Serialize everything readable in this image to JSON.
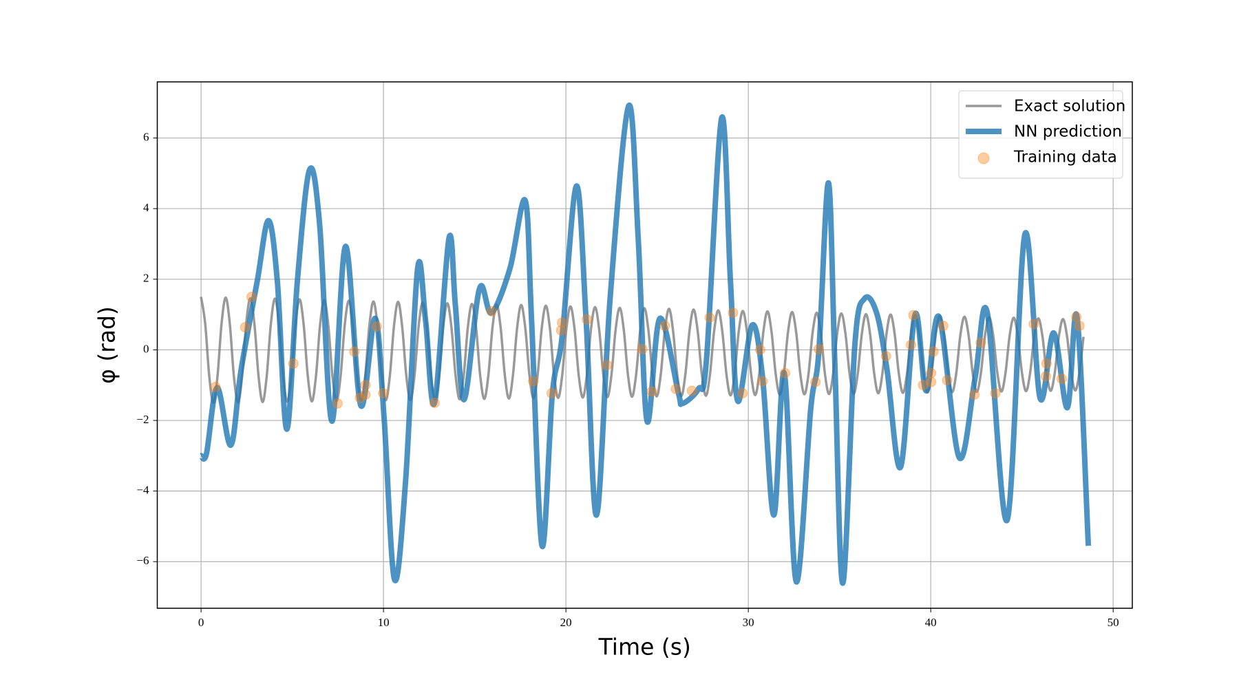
{
  "chart_data": {
    "type": "line",
    "xlabel": "Time (s)",
    "ylabel": "φ (rad)",
    "xlim": [
      -2.4,
      51.05
    ],
    "ylim": [
      -7.32,
      7.59
    ],
    "xticks": [
      0,
      10,
      20,
      30,
      40,
      50
    ],
    "yticks": [
      {
        "value": -6,
        "label": "−6"
      },
      {
        "value": -4,
        "label": "−4"
      },
      {
        "value": -2,
        "label": "−2"
      },
      0,
      2,
      4,
      6
    ],
    "grid": true,
    "legend": "upper right",
    "series": [
      {
        "name": "Exact solution",
        "type": "line",
        "color": "#808080",
        "x": [
          0,
          0.225,
          0.45,
          0.675,
          0.9,
          1.125,
          1.35,
          1.575,
          1.8,
          2.025,
          2.25,
          2.475,
          2.7,
          2.925,
          3.15,
          3.375,
          3.6,
          3.825,
          4.05,
          4.275,
          4.5,
          4.725,
          4.95,
          5.175,
          5.4,
          5.625,
          5.85,
          6.075,
          6.3,
          6.525,
          6.75,
          6.975,
          7.2,
          7.425,
          7.65,
          7.875,
          8.1,
          8.325,
          8.55,
          8.775,
          9,
          9.225,
          9.45,
          9.675,
          9.9,
          10.125,
          10.35,
          10.575,
          10.8,
          11.025,
          11.25,
          11.475,
          11.7,
          11.925,
          12.15,
          12.375,
          12.6,
          12.825,
          13.05,
          13.275,
          13.5,
          13.725,
          13.95,
          14.175,
          14.4,
          14.625,
          14.85,
          15.075,
          15.3,
          15.525,
          15.75,
          15.975,
          16.2,
          16.425,
          16.65,
          16.875,
          17.1,
          17.325,
          17.55,
          17.775,
          18,
          18.225,
          18.45,
          18.675,
          18.9,
          19.125,
          19.35,
          19.575,
          19.8,
          20.025,
          20.25,
          20.475,
          20.7,
          20.925,
          21.15,
          21.375,
          21.6,
          21.825,
          22.05,
          22.275,
          22.5,
          22.725,
          22.95,
          23.175,
          23.4,
          23.625,
          23.85,
          24.075,
          24.3,
          24.525,
          24.75,
          24.975,
          25.2,
          25.425,
          25.65,
          25.875,
          26.1,
          26.325,
          26.55,
          26.775,
          27,
          27.225,
          27.45,
          27.675,
          27.9,
          28.125,
          28.35,
          28.575,
          28.8,
          29.025,
          29.25,
          29.475,
          29.7,
          29.925,
          30.15,
          30.375,
          30.6,
          30.825,
          31.05,
          31.275,
          31.5,
          31.725,
          31.95,
          32.175,
          32.4,
          32.625,
          32.85,
          33.075,
          33.3,
          33.525,
          33.75,
          33.975,
          34.2,
          34.425,
          34.65,
          34.875,
          35.1,
          35.325,
          35.55,
          35.775,
          36,
          36.225,
          36.45,
          36.675,
          36.9,
          37.125,
          37.35,
          37.575,
          37.8,
          38.025,
          38.25,
          38.475,
          38.7,
          38.925,
          39.15,
          39.375,
          39.6,
          39.825,
          40.05,
          40.275,
          40.5,
          40.725,
          40.95,
          41.175,
          41.4,
          41.625,
          41.85,
          42.075,
          42.3,
          42.525,
          42.75,
          42.975,
          43.2,
          43.425,
          43.65,
          43.875,
          44.1,
          44.325,
          44.55,
          44.775,
          45,
          45.225,
          45.45,
          45.675,
          45.9,
          46.125,
          46.35,
          46.575,
          46.8,
          47.025,
          47.25,
          47.475,
          47.7,
          47.925,
          48.15,
          48.375
        ],
        "values": [
          1.5,
          0.75,
          -0.75,
          -1.5,
          -0.75,
          0.75,
          1.48,
          0.74,
          -0.75,
          -1.49,
          -0.75,
          0.74,
          1.46,
          0.73,
          -0.74,
          -1.48,
          -0.74,
          0.73,
          1.45,
          0.72,
          -0.74,
          -1.47,
          -0.74,
          0.72,
          1.43,
          0.71,
          -0.74,
          -1.46,
          -0.74,
          0.71,
          1.41,
          0.7,
          -0.74,
          -1.45,
          -0.74,
          0.7,
          1.39,
          0.68,
          -0.73,
          -1.44,
          -0.73,
          0.68,
          1.37,
          0.67,
          -0.73,
          -1.43,
          -0.73,
          0.67,
          1.36,
          0.66,
          -0.73,
          -1.42,
          -0.73,
          0.66,
          1.34,
          0.65,
          -0.72,
          -1.41,
          -0.72,
          0.65,
          1.32,
          0.64,
          -0.72,
          -1.4,
          -0.72,
          0.64,
          1.3,
          0.63,
          -0.72,
          -1.39,
          -0.72,
          0.63,
          1.28,
          0.62,
          -0.71,
          -1.38,
          -0.71,
          0.62,
          1.27,
          0.61,
          -0.71,
          -1.37,
          -0.71,
          0.61,
          1.25,
          0.6,
          -0.71,
          -1.36,
          -0.71,
          0.6,
          1.23,
          0.59,
          -0.71,
          -1.35,
          -0.71,
          0.59,
          1.21,
          0.57,
          -0.7,
          -1.34,
          -0.7,
          0.57,
          1.19,
          0.56,
          -0.7,
          -1.33,
          -0.7,
          0.56,
          1.18,
          0.55,
          -0.7,
          -1.32,
          -0.7,
          0.55,
          1.16,
          0.54,
          -0.69,
          -1.31,
          -0.69,
          0.54,
          1.14,
          0.53,
          -0.69,
          -1.3,
          -0.69,
          0.53,
          1.12,
          0.52,
          -0.69,
          -1.29,
          -0.69,
          0.52,
          1.1,
          0.51,
          -0.68,
          -1.28,
          -0.68,
          0.51,
          1.09,
          0.5,
          -0.68,
          -1.27,
          -0.68,
          0.5,
          1.07,
          0.49,
          -0.68,
          -1.26,
          -0.68,
          0.49,
          1.05,
          0.48,
          -0.68,
          -1.25,
          -0.68,
          0.48,
          1.03,
          0.46,
          -0.67,
          -1.24,
          -0.67,
          0.46,
          1.01,
          0.45,
          -0.67,
          -1.23,
          -0.67,
          0.45,
          1,
          0.44,
          -0.67,
          -1.22,
          -0.67,
          0.44,
          0.98,
          0.43,
          -0.66,
          -1.21,
          -0.66,
          0.43,
          0.96,
          0.42,
          -0.66,
          -1.2,
          -0.66,
          0.42,
          0.94,
          0.41,
          -0.66,
          -1.19,
          -0.66,
          0.41,
          0.92,
          0.4,
          -0.65,
          -1.18,
          -0.65,
          0.4,
          0.91,
          0.39,
          -0.65,
          -1.17,
          -0.65,
          0.39,
          0.89,
          0.38,
          -0.65,
          -1.16,
          -0.65,
          0.38,
          0.87,
          0.37,
          -0.65,
          -1.15,
          -0.65,
          0.37
        ]
      },
      {
        "name": "NN prediction",
        "type": "line",
        "color": "#1f77b4",
        "x": [
          0,
          0.3,
          0.88,
          1.63,
          2.2,
          3.08,
          3.69,
          4.18,
          4.7,
          5.28,
          5.94,
          6.5,
          7.17,
          7.92,
          8.75,
          9.54,
          10.03,
          10.6,
          11.21,
          11.87,
          12.31,
          12.8,
          13.59,
          13.94,
          14.42,
          15.26,
          15.92,
          16.93,
          17.77,
          18.12,
          18.69,
          19.26,
          19.79,
          20.58,
          21.11,
          21.68,
          22.43,
          23.44,
          23.97,
          24.45,
          25.15,
          26.17,
          26.38,
          27.26,
          27.7,
          28.54,
          29.02,
          29.42,
          30.21,
          30.78,
          31.4,
          31.97,
          32.63,
          33.42,
          33.86,
          34.39,
          34.74,
          35.18,
          35.84,
          36.37,
          37.03,
          37.6,
          38.35,
          39.14,
          39.75,
          40.46,
          41.56,
          42.44,
          43.1,
          44.19,
          45.16,
          45.99,
          46.74,
          47.49,
          48.02,
          48.64
        ],
        "values": [
          -3.0,
          -2.93,
          -1.07,
          -2.7,
          -0.55,
          1.95,
          3.66,
          1.95,
          -2.25,
          1.95,
          5.09,
          3.55,
          -2.02,
          2.93,
          -1.57,
          0.89,
          -1.9,
          -6.5,
          -3.73,
          2.3,
          0.82,
          -1.5,
          3.16,
          1.27,
          -1.41,
          1.73,
          1.05,
          2.3,
          4.23,
          0.82,
          -5.55,
          -1.23,
          0.36,
          4.64,
          0.82,
          -4.68,
          1.5,
          6.91,
          3.09,
          -2.02,
          0.89,
          -1.23,
          -1.52,
          -1.11,
          -0.32,
          6.57,
          1.95,
          -1.45,
          0.7,
          -0.77,
          -4.68,
          -0.66,
          -6.57,
          -1.68,
          -0.09,
          4.73,
          -0.32,
          -6.61,
          0.14,
          1.45,
          1.05,
          -0.55,
          -3.32,
          1.0,
          -1.16,
          0.93,
          -3.05,
          -0.77,
          1.05,
          -4.82,
          3.27,
          -1.36,
          0.48,
          -1.64,
          0.93,
          -5.55
        ]
      },
      {
        "name": "Training data",
        "type": "scatter",
        "color": "#ff7f0e",
        "x": [
          0.79,
          2.42,
          2.77,
          5.06,
          7.48,
          8.4,
          8.71,
          9.01,
          9.01,
          9.63,
          9.98,
          12.8,
          15.92,
          18.21,
          19.22,
          19.74,
          19.79,
          21.15,
          22.25,
          24.19,
          24.71,
          25.42,
          26.03,
          26.91,
          27.88,
          29.16,
          29.68,
          30.65,
          30.78,
          32.01,
          33.68,
          33.86,
          37.55,
          38.92,
          39.05,
          39.58,
          40.02,
          40.02,
          40.15,
          40.68,
          40.9,
          42.39,
          42.74,
          43.54,
          45.65,
          46.31,
          46.35,
          47.18,
          47.98,
          48.15
        ],
        "values": [
          -1.05,
          0.64,
          1.5,
          -0.39,
          -1.52,
          -0.05,
          -1.36,
          -1.0,
          -1.27,
          0.66,
          -1.23,
          -1.5,
          1.09,
          -0.89,
          -1.23,
          0.55,
          0.77,
          0.86,
          -0.43,
          0.02,
          -1.18,
          0.68,
          -1.11,
          -1.16,
          0.91,
          1.05,
          -1.23,
          0,
          -0.89,
          -0.66,
          -0.91,
          0.02,
          -0.18,
          0.14,
          0.98,
          -1.0,
          -0.66,
          -0.91,
          -0.05,
          0.68,
          -0.86,
          -1.27,
          0.2,
          -1.23,
          0.73,
          -0.75,
          -0.39,
          -0.82,
          0.93,
          0.68
        ]
      }
    ]
  }
}
